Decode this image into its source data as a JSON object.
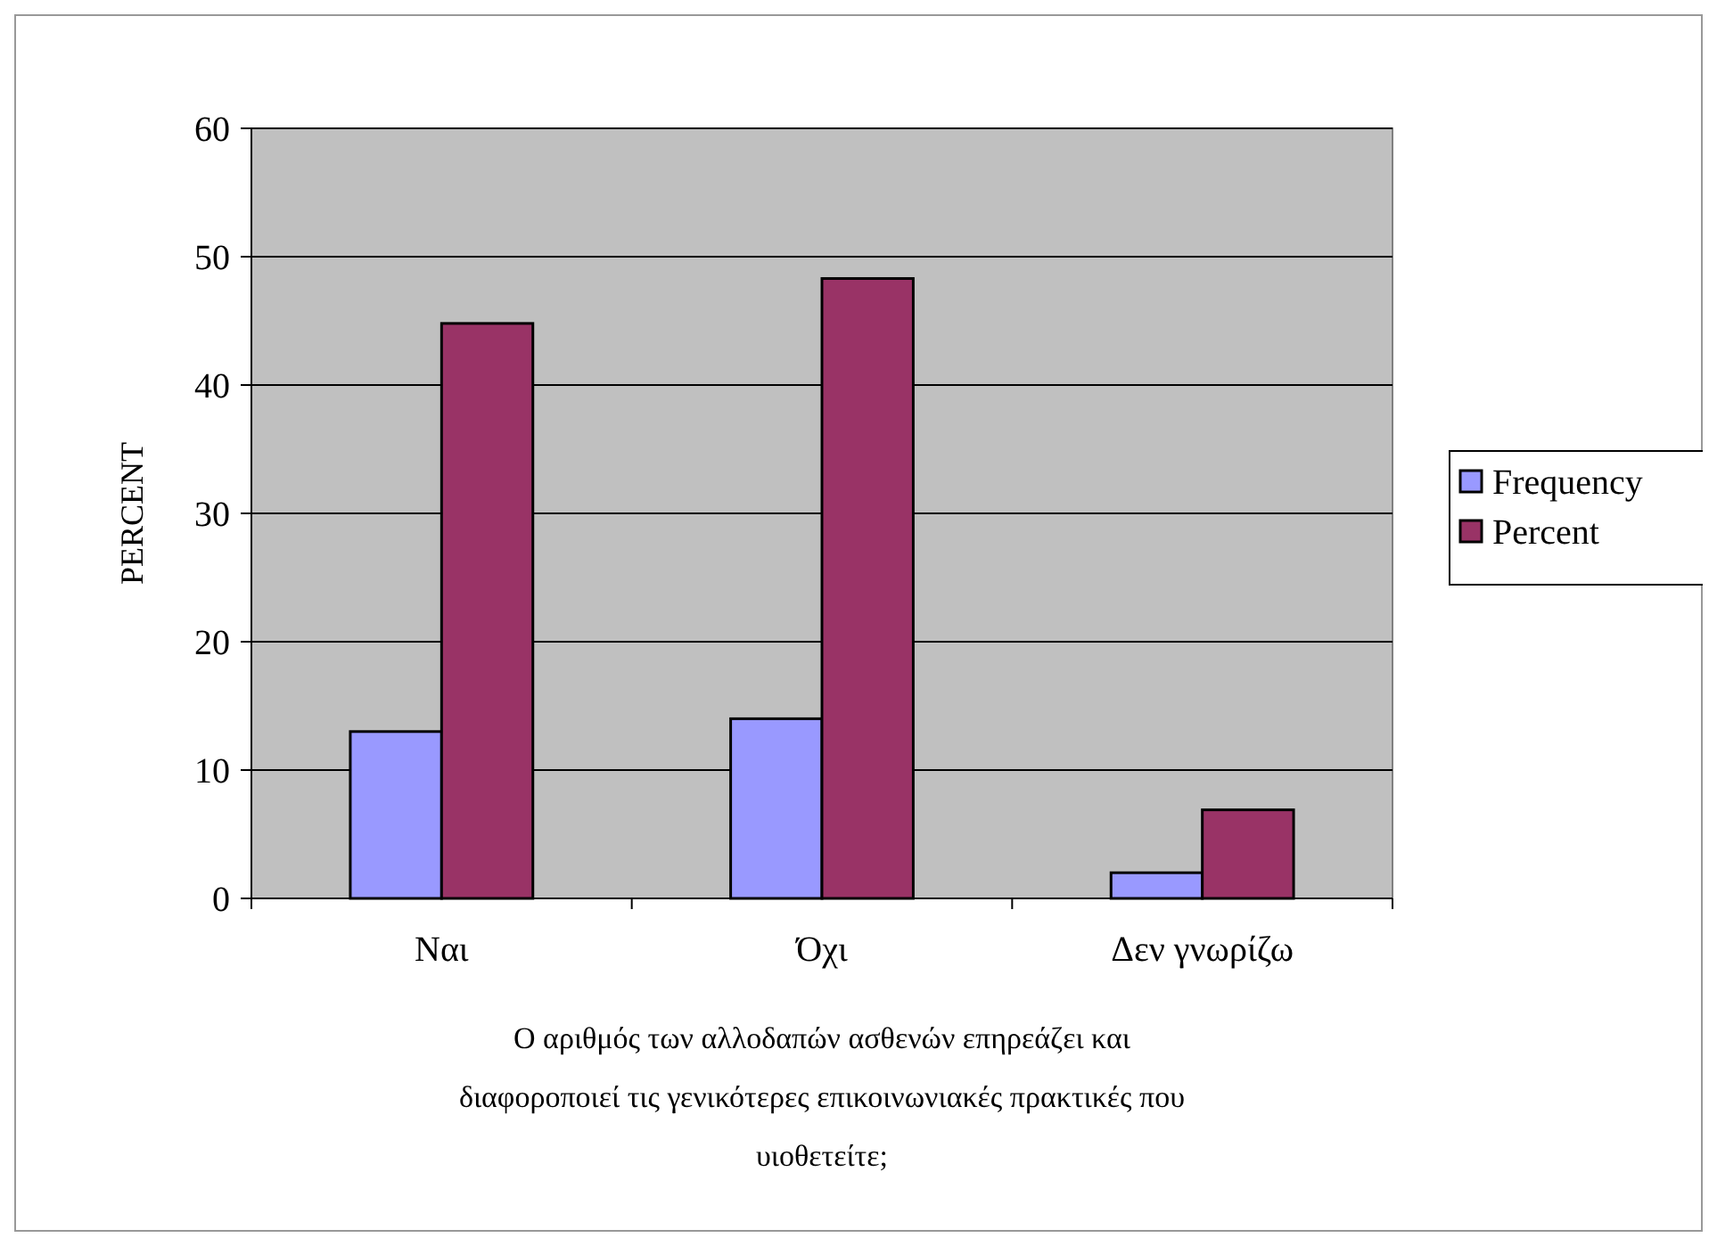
{
  "chart_data": {
    "type": "bar",
    "ylabel": "PERCENT",
    "xlabel": "Ο αριθμός των αλλοδαπών ασθενών επηρεάζει και διαφοροποιεί τις γενικότερες επικοινωνιακές πρακτικές που υιοθετείτε;",
    "categories": [
      "Ναι",
      "Όχι",
      "Δεν γνωρίζω"
    ],
    "series": [
      {
        "name": "Frequency",
        "color": "#9999ff",
        "values": [
          13,
          14,
          2
        ]
      },
      {
        "name": "Percent",
        "color": "#993366",
        "values": [
          44.8,
          48.3,
          6.9
        ]
      }
    ],
    "ylim": [
      0,
      60
    ],
    "yticks": [
      0,
      10,
      20,
      30,
      40,
      50,
      60
    ],
    "grid": "y",
    "legend": "right"
  }
}
